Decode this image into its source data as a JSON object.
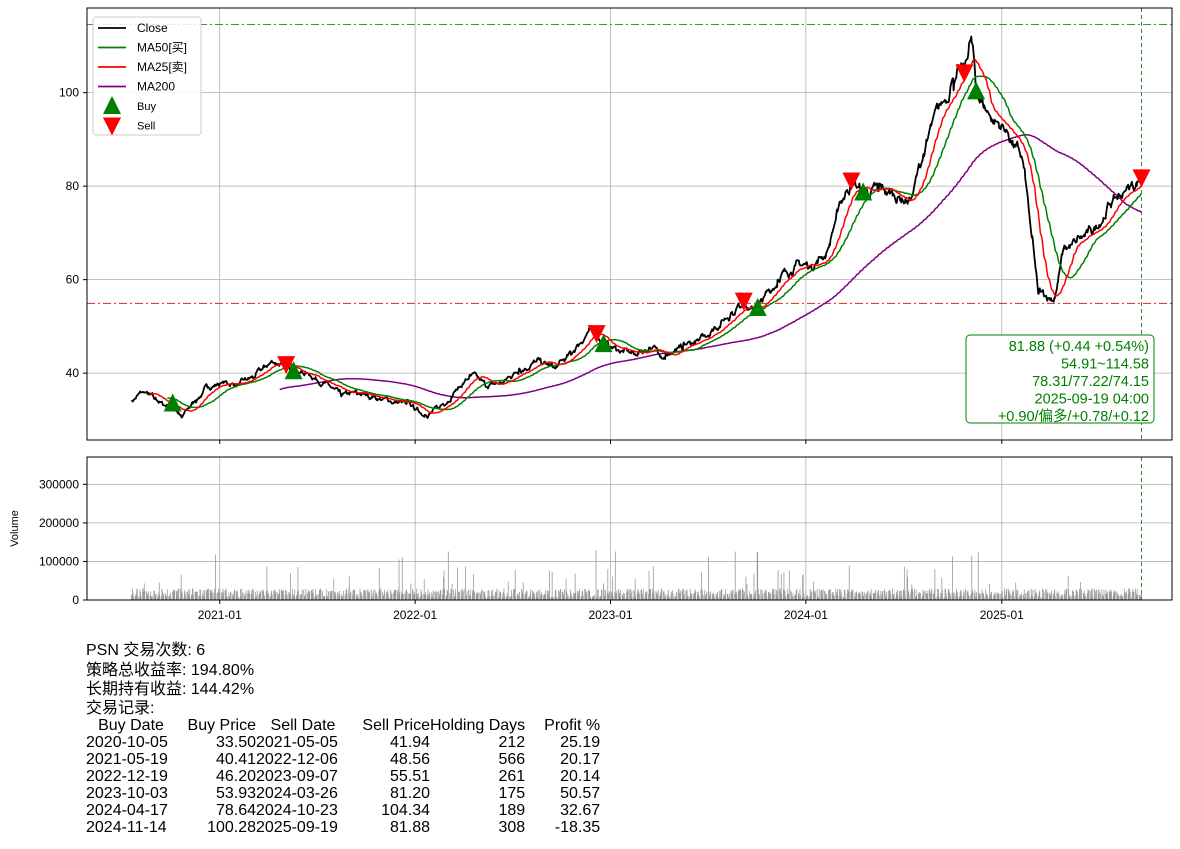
{
  "chart_data": [
    {
      "type": "line",
      "title": "",
      "ylabel": "",
      "ylim": [
        25.7,
        118.1
      ],
      "yticks": [
        "40",
        "60",
        "80",
        "100"
      ],
      "ytick_values": [
        40,
        60,
        80,
        100
      ],
      "grid": true,
      "legend_position": "top-left",
      "legend": [
        "Close",
        "MA50[买]",
        "MA25[卖]",
        "MA200",
        "Buy",
        "Sell"
      ],
      "colors": {
        "close": "#000000",
        "ma50": "#008000",
        "ma25": "#ff0000",
        "ma200": "#800080",
        "buy": "#008000",
        "sell": "#ff0000",
        "max_line": "#2ca02c",
        "min_line": "#d62728"
      },
      "hlines": {
        "max": 114.58,
        "min": 54.91
      },
      "vline_date": "2025-09-19",
      "close_anchors": [
        [
          "2020-07-20",
          34
        ],
        [
          "2020-08-10",
          36
        ],
        [
          "2020-09-01",
          34.5
        ],
        [
          "2020-09-20",
          33
        ],
        [
          "2020-10-05",
          33.5
        ],
        [
          "2020-10-22",
          30.5
        ],
        [
          "2020-11-15",
          34
        ],
        [
          "2020-12-10",
          37
        ],
        [
          "2021-01-05",
          38
        ],
        [
          "2021-02-05",
          37.5
        ],
        [
          "2021-03-05",
          39
        ],
        [
          "2021-04-10",
          42.5
        ],
        [
          "2021-05-05",
          41.94
        ],
        [
          "2021-05-19",
          40.41
        ],
        [
          "2021-06-15",
          40
        ],
        [
          "2021-07-15",
          38
        ],
        [
          "2021-08-15",
          35
        ],
        [
          "2021-09-15",
          35.5
        ],
        [
          "2021-10-15",
          35
        ],
        [
          "2021-11-15",
          34
        ],
        [
          "2021-12-15",
          33.5
        ],
        [
          "2022-01-20",
          31
        ],
        [
          "2022-02-15",
          32.5
        ],
        [
          "2022-03-15",
          36
        ],
        [
          "2022-04-15",
          39.5
        ],
        [
          "2022-05-15",
          37
        ],
        [
          "2022-06-15",
          38
        ],
        [
          "2022-07-15",
          41
        ],
        [
          "2022-08-15",
          42.5
        ],
        [
          "2022-09-20",
          41
        ],
        [
          "2022-10-20",
          44
        ],
        [
          "2022-11-20",
          49
        ],
        [
          "2022-12-06",
          48.56
        ],
        [
          "2022-12-19",
          46.2
        ],
        [
          "2023-01-15",
          45
        ],
        [
          "2023-02-15",
          44
        ],
        [
          "2023-03-15",
          45.5
        ],
        [
          "2023-04-15",
          44
        ],
        [
          "2023-05-15",
          45
        ],
        [
          "2023-06-15",
          47
        ],
        [
          "2023-07-15",
          50
        ],
        [
          "2023-08-15",
          53
        ],
        [
          "2023-09-07",
          55.51
        ],
        [
          "2023-09-25",
          53
        ],
        [
          "2023-10-03",
          53.93
        ],
        [
          "2023-11-10",
          60
        ],
        [
          "2023-12-10",
          63
        ],
        [
          "2024-01-10",
          63
        ],
        [
          "2024-02-10",
          66
        ],
        [
          "2024-03-01",
          75
        ],
        [
          "2024-03-26",
          81.2
        ],
        [
          "2024-04-17",
          78.64
        ],
        [
          "2024-05-15",
          79
        ],
        [
          "2024-06-15",
          78
        ],
        [
          "2024-07-15",
          77
        ],
        [
          "2024-08-15",
          90
        ],
        [
          "2024-09-15",
          98
        ],
        [
          "2024-10-01",
          103
        ],
        [
          "2024-10-23",
          104.34
        ],
        [
          "2024-11-05",
          112
        ],
        [
          "2024-11-14",
          100.28
        ],
        [
          "2024-12-10",
          95
        ],
        [
          "2025-01-10",
          92
        ],
        [
          "2025-02-10",
          85
        ],
        [
          "2025-02-25",
          70
        ],
        [
          "2025-03-10",
          57
        ],
        [
          "2025-04-10",
          56
        ],
        [
          "2025-04-25",
          66
        ],
        [
          "2025-05-20",
          68
        ],
        [
          "2025-06-20",
          70
        ],
        [
          "2025-07-20",
          76
        ],
        [
          "2025-08-20",
          79
        ],
        [
          "2025-09-19",
          81.88
        ]
      ],
      "info_box": [
        "81.88 (+0.44 +0.54%)",
        "54.91~114.58",
        "78.31/77.22/74.15",
        "2025-09-19 04:00",
        "+0.90/偏多/+0.78/+0.12"
      ]
    },
    {
      "type": "bar",
      "ylabel": "Volume",
      "ylim": [
        0,
        371000
      ],
      "yticks": [
        "0",
        "100000",
        "200000",
        "300000"
      ],
      "ytick_values": [
        0,
        100000,
        200000,
        300000
      ],
      "color": "#999999",
      "typical_volume": 20000,
      "peak_volume": 130000
    }
  ],
  "x_axis": {
    "ticks": [
      "2021-01",
      "2022-01",
      "2023-01",
      "2024-01",
      "2025-01"
    ],
    "range": [
      "2020-04-28",
      "2025-11-15"
    ]
  },
  "summary": {
    "trades_line": "PSN 交易次数: 6",
    "strategy_return": "策略总收益率: 194.80%",
    "hold_return": "长期持有收益: 144.42%",
    "records_title": "交易记录:"
  },
  "trades": {
    "headers": [
      "Buy Date",
      "Buy Price",
      "Sell Date",
      "Sell Price",
      "Holding Days",
      "Profit %"
    ],
    "rows": [
      [
        "2020-10-05",
        "33.50",
        "2021-05-05",
        "41.94",
        "212",
        "25.19"
      ],
      [
        "2021-05-19",
        "40.41",
        "2022-12-06",
        "48.56",
        "566",
        "20.17"
      ],
      [
        "2022-12-19",
        "46.20",
        "2023-09-07",
        "55.51",
        "261",
        "20.14"
      ],
      [
        "2023-10-03",
        "53.93",
        "2024-03-26",
        "81.20",
        "175",
        "50.57"
      ],
      [
        "2024-04-17",
        "78.64",
        "2024-10-23",
        "104.34",
        "189",
        "32.67"
      ],
      [
        "2024-11-14",
        "100.28",
        "2025-09-19",
        "81.88",
        "308",
        "-18.35"
      ]
    ]
  }
}
